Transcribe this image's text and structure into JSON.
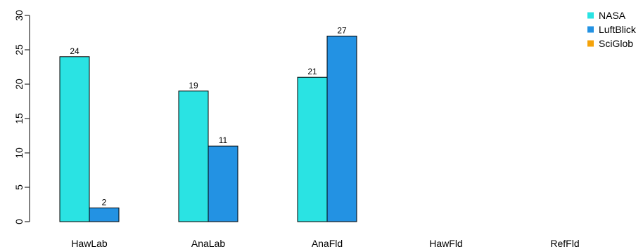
{
  "chart_data": {
    "type": "bar",
    "categories": [
      "HawLab",
      "AnaLab",
      "AnaFld",
      "HawFld",
      "RefFld"
    ],
    "series": [
      {
        "name": "NASA",
        "color": "#2AE3E3",
        "values": [
          24,
          19,
          21,
          null,
          null
        ]
      },
      {
        "name": "LuftBlick",
        "color": "#2392E3",
        "values": [
          2,
          11,
          27,
          null,
          null
        ]
      },
      {
        "name": "SciGlob",
        "color": "#F5A30A",
        "values": [
          null,
          null,
          null,
          null,
          null
        ]
      }
    ],
    "title": "",
    "xlabel": "",
    "ylabel": "",
    "ylim": [
      0,
      30
    ],
    "yticks": [
      0,
      5,
      10,
      15,
      20,
      25,
      30
    ],
    "grid": false,
    "legend_position": "top-right",
    "bar_border_color": "#000000"
  }
}
